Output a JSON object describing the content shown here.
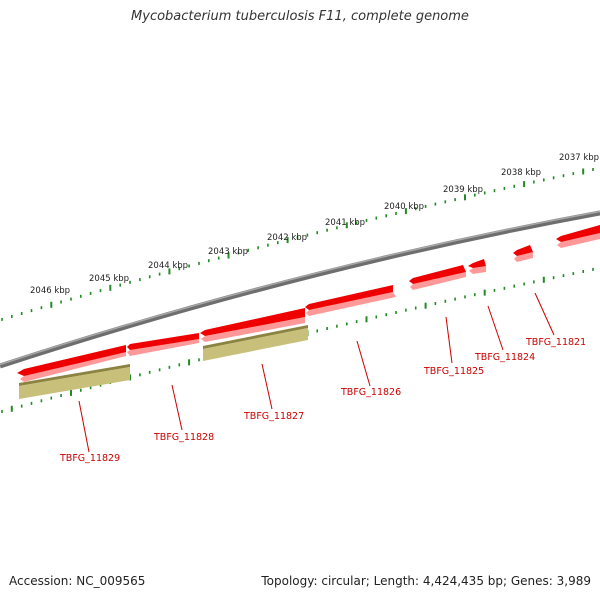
{
  "title": "Mycobacterium tuberculosis F11, complete genome",
  "accession_text": "Accession: NC_009565",
  "summary_text": "Topology: circular; Length: 4,424,435 bp; Genes: 3,989",
  "colors": {
    "backbone": "#808080",
    "gene_fill": "#ee0000",
    "gene_shadow": "#ff9999",
    "rna_fill": "#c8bf7a",
    "rna_edge": "#8a8440",
    "tick": "#228b22",
    "label": "#cc0000"
  },
  "scale_labels": [
    "2046 kbp",
    "2045 kbp",
    "2044 kbp",
    "2043 kbp",
    "2042 kbp",
    "2041 kbp",
    "2040 kbp",
    "2039 kbp",
    "2038 kbp",
    "2037 kbp"
  ],
  "gene_labels": [
    "TBFG_11829",
    "TBFG_11828",
    "TBFG_11827",
    "TBFG_11826",
    "TBFG_11825",
    "TBFG_11824",
    "TBFG_11821"
  ]
}
